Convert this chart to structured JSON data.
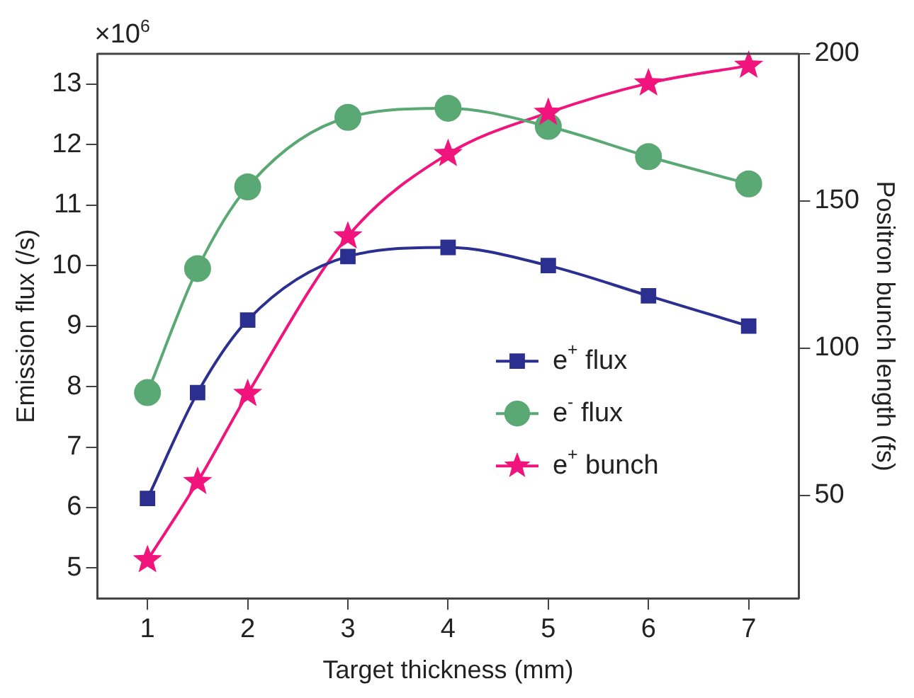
{
  "chart_data": {
    "type": "line",
    "xlabel": "Target thickness (mm)",
    "ylabel": "Emission flux (/s)",
    "y2label": "Positron bunch length (fs)",
    "annotations": [
      "×10$^{6}$"
    ],
    "xlim": [
      0.5,
      7.5
    ],
    "xticks": [
      1,
      2,
      3,
      4,
      5,
      6,
      7
    ],
    "ylim": [
      4.5,
      13.5
    ],
    "yticks": [
      5,
      6,
      7,
      8,
      9,
      10,
      11,
      12,
      13
    ],
    "y2lim": [
      15,
      200
    ],
    "y2ticks": [
      50,
      100,
      150,
      200
    ],
    "x": [
      1,
      1.5,
      2,
      3,
      4,
      5,
      6,
      7
    ],
    "grid": false,
    "legend": "bottom right",
    "series": [
      {
        "name": "e$^{+}$ flux",
        "color": "#2b2f8f",
        "marker": "square",
        "values": [
          6.15,
          7.9,
          9.1,
          10.15,
          10.3,
          10.0,
          9.5,
          9.0
        ]
      },
      {
        "name": "e$^{-}$ flux",
        "color": "#5aa873",
        "marker": "circle",
        "values": [
          7.9,
          9.95,
          11.3,
          12.45,
          12.6,
          12.3,
          11.8,
          11.35
        ]
      },
      {
        "name": "e$^{+}$ bunch",
        "color": "#f0147c",
        "marker": "star",
        "axis": "y2",
        "values": [
          28,
          54.6,
          84.5,
          138,
          166,
          180,
          190,
          196
        ]
      }
    ]
  }
}
